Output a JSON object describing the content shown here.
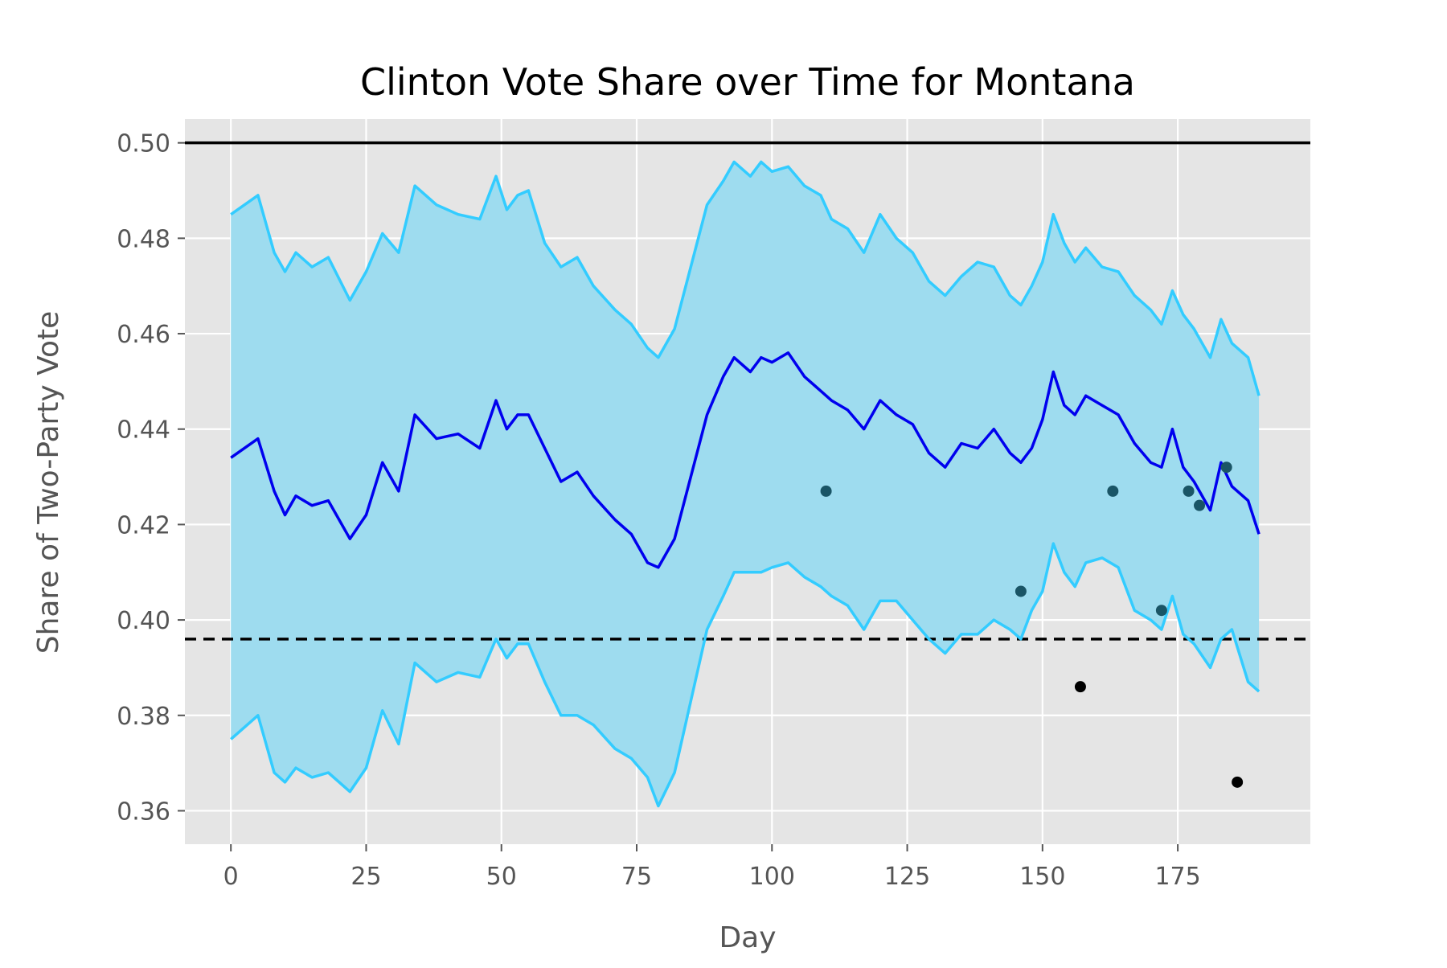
{
  "chart_data": {
    "type": "line",
    "title": "Clinton Vote Share over Time for Montana",
    "xlabel": "Day",
    "ylabel": "Share of Two-Party Vote",
    "xlim": [
      -8.5,
      199.5
    ],
    "ylim": [
      0.353,
      0.505
    ],
    "x_ticks": [
      0,
      25,
      50,
      75,
      100,
      125,
      150,
      175
    ],
    "y_ticks": [
      0.36,
      0.38,
      0.4,
      0.42,
      0.44,
      0.46,
      0.48,
      0.5
    ],
    "y_tick_labels": [
      "0.36",
      "0.38",
      "0.40",
      "0.42",
      "0.44",
      "0.46",
      "0.48",
      "0.50"
    ],
    "grid": true,
    "background": "#e5e5e5",
    "colors": {
      "mean": "#0000ee",
      "band_line": "#33ccff",
      "band_fill": "#9edcef",
      "reference": "#000000",
      "poll_dark_teal": "#1a5566",
      "poll_black": "#000000"
    },
    "reference_lines": [
      {
        "y": 0.5,
        "style": "solid"
      },
      {
        "y": 0.396,
        "style": "dashed"
      }
    ],
    "series": [
      {
        "role": "mean",
        "x": [
          0,
          5,
          8,
          10,
          12,
          15,
          18,
          22,
          25,
          28,
          31,
          34,
          38,
          42,
          46,
          49,
          51,
          53,
          55,
          58,
          61,
          64,
          67,
          71,
          74,
          77,
          79,
          82,
          85,
          88,
          91,
          93,
          96,
          98,
          100,
          103,
          106,
          109,
          111,
          114,
          117,
          120,
          123,
          126,
          129,
          132,
          135,
          138,
          141,
          144,
          146,
          148,
          150,
          152,
          154,
          156,
          158,
          161,
          164,
          167,
          170,
          172,
          174,
          176,
          178,
          181,
          183,
          185,
          188,
          190
        ],
        "y": [
          0.434,
          0.438,
          0.427,
          0.422,
          0.426,
          0.424,
          0.425,
          0.417,
          0.422,
          0.433,
          0.427,
          0.443,
          0.438,
          0.439,
          0.436,
          0.446,
          0.44,
          0.443,
          0.443,
          0.436,
          0.429,
          0.431,
          0.426,
          0.421,
          0.418,
          0.412,
          0.411,
          0.417,
          0.43,
          0.443,
          0.451,
          0.455,
          0.452,
          0.455,
          0.454,
          0.456,
          0.451,
          0.448,
          0.446,
          0.444,
          0.44,
          0.446,
          0.443,
          0.441,
          0.435,
          0.432,
          0.437,
          0.436,
          0.44,
          0.435,
          0.433,
          0.436,
          0.442,
          0.452,
          0.445,
          0.443,
          0.447,
          0.445,
          0.443,
          0.437,
          0.433,
          0.432,
          0.44,
          0.432,
          0.429,
          0.423,
          0.433,
          0.428,
          0.425,
          0.418
        ]
      },
      {
        "role": "upper_bound",
        "x": [
          0,
          5,
          8,
          10,
          12,
          15,
          18,
          22,
          25,
          28,
          31,
          34,
          38,
          42,
          46,
          49,
          51,
          53,
          55,
          58,
          61,
          64,
          67,
          71,
          74,
          77,
          79,
          82,
          85,
          88,
          91,
          93,
          96,
          98,
          100,
          103,
          106,
          109,
          111,
          114,
          117,
          120,
          123,
          126,
          129,
          132,
          135,
          138,
          141,
          144,
          146,
          148,
          150,
          152,
          154,
          156,
          158,
          161,
          164,
          167,
          170,
          172,
          174,
          176,
          178,
          181,
          183,
          185,
          188,
          190
        ],
        "y": [
          0.485,
          0.489,
          0.477,
          0.473,
          0.477,
          0.474,
          0.476,
          0.467,
          0.473,
          0.481,
          0.477,
          0.491,
          0.487,
          0.485,
          0.484,
          0.493,
          0.486,
          0.489,
          0.49,
          0.479,
          0.474,
          0.476,
          0.47,
          0.465,
          0.462,
          0.457,
          0.455,
          0.461,
          0.474,
          0.487,
          0.492,
          0.496,
          0.493,
          0.496,
          0.494,
          0.495,
          0.491,
          0.489,
          0.484,
          0.482,
          0.477,
          0.485,
          0.48,
          0.477,
          0.471,
          0.468,
          0.472,
          0.475,
          0.474,
          0.468,
          0.466,
          0.47,
          0.475,
          0.485,
          0.479,
          0.475,
          0.478,
          0.474,
          0.473,
          0.468,
          0.465,
          0.462,
          0.469,
          0.464,
          0.461,
          0.455,
          0.463,
          0.458,
          0.455,
          0.447
        ]
      },
      {
        "role": "lower_bound",
        "x": [
          0,
          5,
          8,
          10,
          12,
          15,
          18,
          22,
          25,
          28,
          31,
          34,
          38,
          42,
          46,
          49,
          51,
          53,
          55,
          58,
          61,
          64,
          67,
          71,
          74,
          77,
          79,
          82,
          85,
          88,
          91,
          93,
          96,
          98,
          100,
          103,
          106,
          109,
          111,
          114,
          117,
          120,
          123,
          126,
          129,
          132,
          135,
          138,
          141,
          144,
          146,
          148,
          150,
          152,
          154,
          156,
          158,
          161,
          164,
          167,
          170,
          172,
          174,
          176,
          178,
          181,
          183,
          185,
          188,
          190
        ],
        "y": [
          0.375,
          0.38,
          0.368,
          0.366,
          0.369,
          0.367,
          0.368,
          0.364,
          0.369,
          0.381,
          0.374,
          0.391,
          0.387,
          0.389,
          0.388,
          0.396,
          0.392,
          0.395,
          0.395,
          0.387,
          0.38,
          0.38,
          0.378,
          0.373,
          0.371,
          0.367,
          0.361,
          0.368,
          0.383,
          0.398,
          0.405,
          0.41,
          0.41,
          0.41,
          0.411,
          0.412,
          0.409,
          0.407,
          0.405,
          0.403,
          0.398,
          0.404,
          0.404,
          0.4,
          0.396,
          0.393,
          0.397,
          0.397,
          0.4,
          0.398,
          0.396,
          0.402,
          0.406,
          0.416,
          0.41,
          0.407,
          0.412,
          0.413,
          0.411,
          0.402,
          0.4,
          0.398,
          0.405,
          0.397,
          0.395,
          0.39,
          0.396,
          0.398,
          0.387,
          0.385
        ]
      }
    ],
    "polls": [
      {
        "x": 110,
        "y": 0.427,
        "color": "#1a5566"
      },
      {
        "x": 146,
        "y": 0.406,
        "color": "#1a5566"
      },
      {
        "x": 157,
        "y": 0.386,
        "color": "#000000"
      },
      {
        "x": 163,
        "y": 0.427,
        "color": "#1a5566"
      },
      {
        "x": 172,
        "y": 0.402,
        "color": "#1a5566"
      },
      {
        "x": 177,
        "y": 0.427,
        "color": "#1a5566"
      },
      {
        "x": 179,
        "y": 0.424,
        "color": "#1a5566"
      },
      {
        "x": 184,
        "y": 0.432,
        "color": "#1a5566"
      },
      {
        "x": 186,
        "y": 0.366,
        "color": "#000000"
      }
    ]
  }
}
